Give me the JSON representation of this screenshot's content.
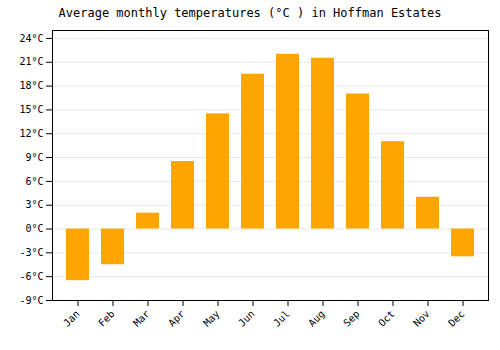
{
  "chart_data": {
    "type": "bar",
    "title": "Average monthly temperatures (°C ) in Hoffman Estates",
    "categories": [
      "Jan",
      "Feb",
      "Mar",
      "Apr",
      "May",
      "Jun",
      "Jul",
      "Aug",
      "Sep",
      "Oct",
      "Nov",
      "Dec"
    ],
    "values": [
      -6.5,
      -4.5,
      2.0,
      8.5,
      14.5,
      19.5,
      22.0,
      21.5,
      17.0,
      11.0,
      4.0,
      -3.5
    ],
    "color": "#FFA500",
    "ylim": [
      -9,
      25
    ],
    "yticks": [
      {
        "value": -9,
        "label": "-9°C"
      },
      {
        "value": -6,
        "label": "-6°C"
      },
      {
        "value": -3,
        "label": "-3°C"
      },
      {
        "value": 0,
        "label": "0°C"
      },
      {
        "value": 3,
        "label": "3°C"
      },
      {
        "value": 6,
        "label": "6°C"
      },
      {
        "value": 9,
        "label": "9°C"
      },
      {
        "value": 12,
        "label": "12°C"
      },
      {
        "value": 15,
        "label": "15°C"
      },
      {
        "value": 18,
        "label": "18°C"
      },
      {
        "value": 21,
        "label": "21°C"
      },
      {
        "value": 24,
        "label": "24°C"
      }
    ],
    "grid": true
  }
}
